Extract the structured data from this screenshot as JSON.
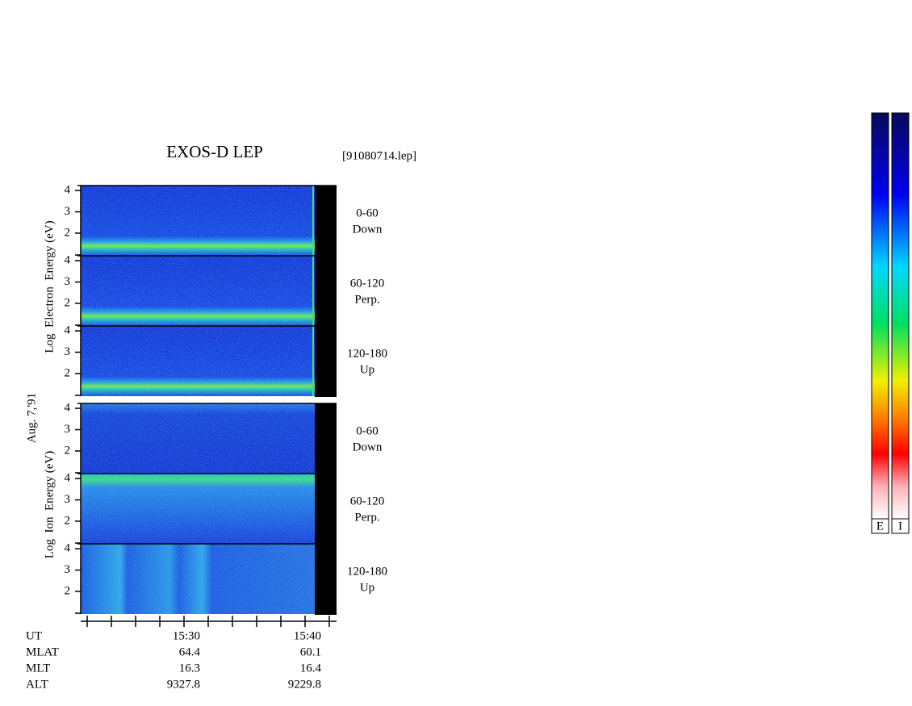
{
  "header": {
    "title": "EXOS-D LEP",
    "file": "[91080714.lep]",
    "date": "Aug. 7,'91"
  },
  "groups": [
    {
      "axis_label": "Log  Electron  Energy (eV)",
      "ylim": [
        0.94,
        4.23
      ],
      "yticks": [
        4,
        3,
        2
      ],
      "panels": [
        {
          "angle": "0-60",
          "direction": "Down"
        },
        {
          "angle": "60-120",
          "direction": "Perp."
        },
        {
          "angle": "120-180",
          "direction": "Up"
        }
      ]
    },
    {
      "axis_label": "Log  Ion  Energy (eV)",
      "ylim": [
        0.94,
        4.23
      ],
      "yticks": [
        4,
        3,
        2
      ],
      "panels": [
        {
          "angle": "0-60",
          "direction": "Down"
        },
        {
          "angle": "60-120",
          "direction": "Perp."
        },
        {
          "angle": "120-180",
          "direction": "Up"
        }
      ]
    }
  ],
  "orbit": {
    "rows": [
      [
        "UT",
        "15:30",
        "15:40"
      ],
      [
        "MLAT",
        64.4,
        60.1
      ],
      [
        "MLT",
        16.3,
        16.4
      ],
      [
        "ALT",
        9327.8,
        9229.8
      ]
    ]
  },
  "colorbars": [
    "E",
    "I"
  ]
}
